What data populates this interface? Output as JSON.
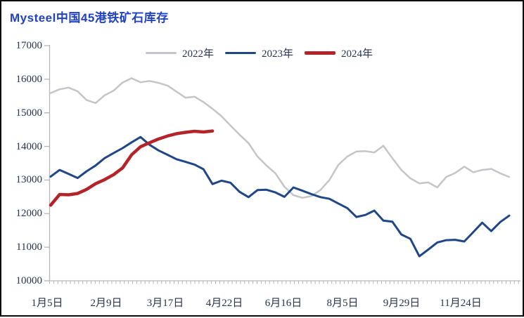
{
  "window": {
    "background": "#ffffff",
    "border_color": "#0b0b0b"
  },
  "chart_data": {
    "type": "line",
    "title": "Mysteel中国45港铁矿石库存",
    "title_color": "#2141c4",
    "xlabel": "",
    "ylabel": "",
    "ylim": [
      10000,
      17000
    ],
    "y_ticks": [
      "10000",
      "11000",
      "12000",
      "13000",
      "14000",
      "15000",
      "16000",
      "17000"
    ],
    "x_tick_labels": [
      "1月5日",
      "2月9日",
      "3月17日",
      "4月22日",
      "6月16日",
      "8月5日",
      "9月29日",
      "11月24日"
    ],
    "grid": false,
    "legend_position": "top-center",
    "axis_color": "#b5b6ba",
    "text_color": "#27344f",
    "series": [
      {
        "name": "2022年",
        "color": "#c4c5c9",
        "stroke_width": 2.5,
        "values": [
          15590,
          15700,
          15750,
          15640,
          15380,
          15290,
          15520,
          15660,
          15900,
          16030,
          15910,
          15950,
          15890,
          15810,
          15630,
          15450,
          15480,
          15320,
          15120,
          14900,
          14620,
          14350,
          14100,
          13700,
          13430,
          13200,
          12800,
          12550,
          12470,
          12520,
          12700,
          13000,
          13450,
          13700,
          13850,
          13860,
          13820,
          14020,
          13650,
          13300,
          13050,
          12900,
          12930,
          12780,
          13090,
          13210,
          13400,
          13230,
          13300,
          13330,
          13200,
          13090
        ]
      },
      {
        "name": "2023年",
        "color": "#1f4787",
        "stroke_width": 3,
        "values": [
          13100,
          13300,
          13180,
          13060,
          13260,
          13430,
          13650,
          13800,
          13950,
          14120,
          14280,
          14050,
          13880,
          13750,
          13620,
          13540,
          13460,
          13320,
          12880,
          12980,
          12920,
          12650,
          12490,
          12700,
          12710,
          12630,
          12500,
          12780,
          12680,
          12580,
          12490,
          12440,
          12300,
          12160,
          11900,
          11960,
          12090,
          11790,
          11760,
          11380,
          11250,
          10730,
          10930,
          11140,
          11210,
          11220,
          11170,
          11450,
          11730,
          11480,
          11750,
          11940
        ]
      },
      {
        "name": "2024年",
        "color": "#b42328",
        "stroke_width": 4.5,
        "values": [
          12250,
          12570,
          12560,
          12600,
          12720,
          12890,
          13010,
          13160,
          13360,
          13750,
          13990,
          14110,
          14220,
          14310,
          14380,
          14420,
          14450,
          14430,
          14460
        ]
      }
    ]
  }
}
